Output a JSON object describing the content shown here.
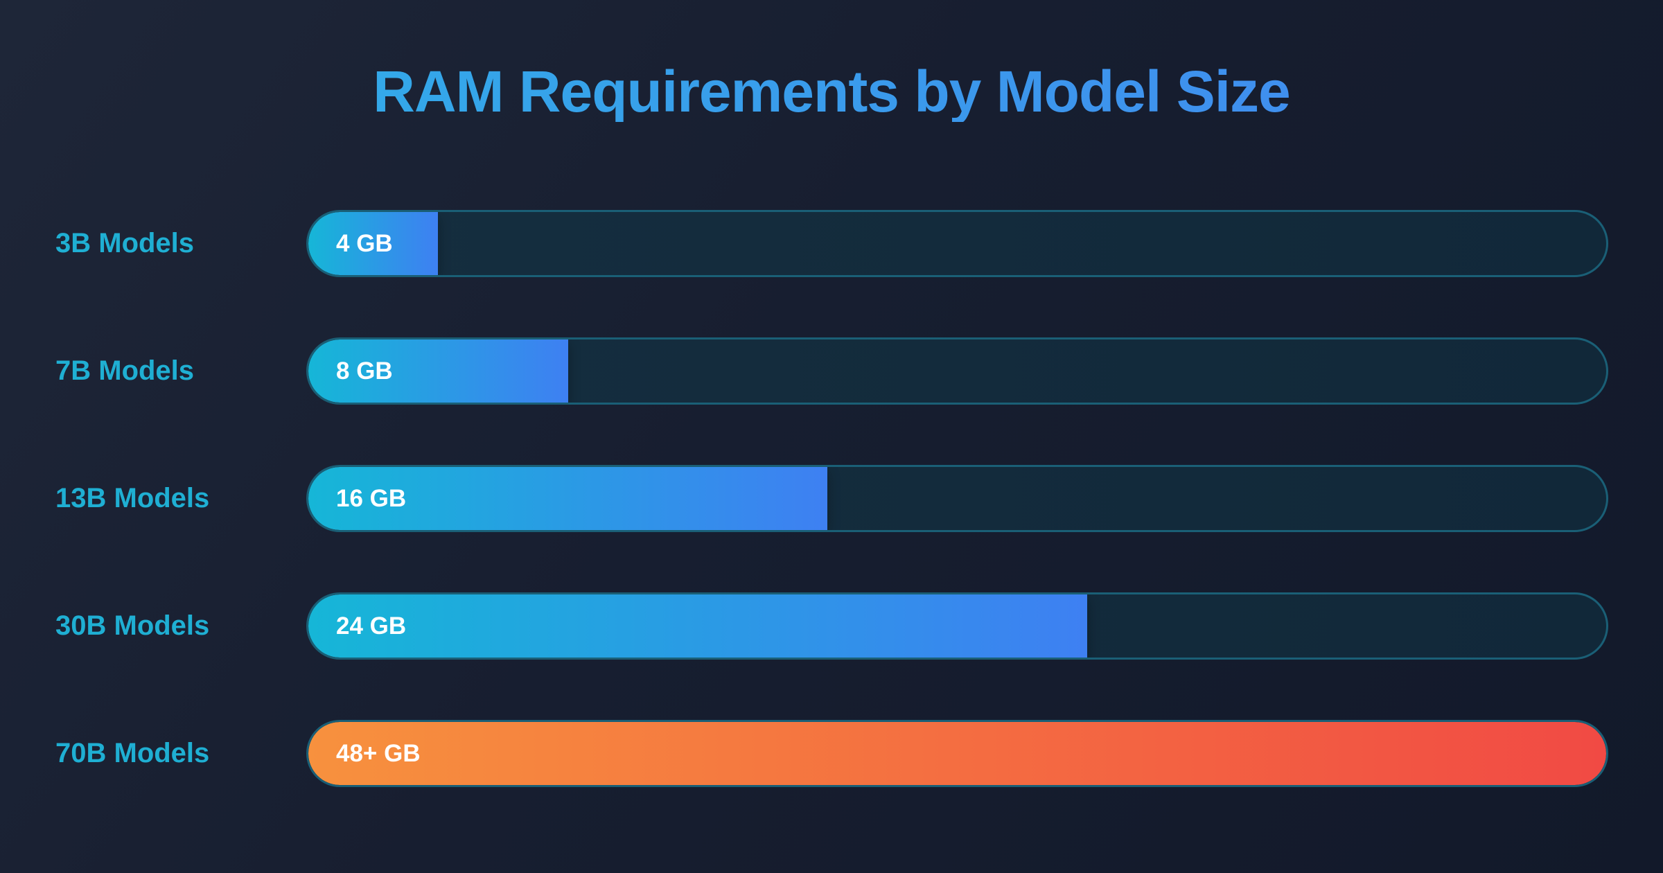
{
  "page_title": "RAM Requirements by Model Size",
  "theme": {
    "bg_top": "#1e2638",
    "bg_mid": "#171e30",
    "bg_bottom": "#12192a",
    "title_from": "#2fb2e7",
    "title_to": "#4485f0",
    "label_color": "#1fafd3",
    "track_bg_from": "#152e3f",
    "track_bg_to": "#112839",
    "track_border": "#1a5f76",
    "value_color": "#ffffff"
  },
  "chart_data": {
    "type": "bar",
    "orientation": "horizontal",
    "title": "RAM Requirements by Model Size",
    "categories": [
      "3B Models",
      "7B Models",
      "13B Models",
      "30B Models",
      "70B Models"
    ],
    "values": [
      4,
      8,
      16,
      24,
      48
    ],
    "value_unit": "GB",
    "xlabel": "",
    "ylabel": "",
    "xlim": [
      0,
      40
    ],
    "grid": false,
    "legend": false,
    "bars": [
      {
        "label": "3B Models",
        "value_gb": 4,
        "value_label": "4 GB",
        "percent": 10,
        "color_from": "#16b6d7",
        "color_to": "#3e80f2"
      },
      {
        "label": "7B Models",
        "value_gb": 8,
        "value_label": "8 GB",
        "percent": 20,
        "color_from": "#16b6d7",
        "color_to": "#3e80f2"
      },
      {
        "label": "13B Models",
        "value_gb": 16,
        "value_label": "16 GB",
        "percent": 40,
        "color_from": "#16b6d7",
        "color_to": "#3e80f2"
      },
      {
        "label": "30B Models",
        "value_gb": 24,
        "value_label": "24 GB",
        "percent": 60,
        "color_from": "#16b6d7",
        "color_to": "#3e80f2"
      },
      {
        "label": "70B Models",
        "value_gb": 48,
        "value_label": "48+ GB",
        "percent": 100,
        "color_from": "#f7913e",
        "color_to": "#f14a44"
      }
    ]
  }
}
